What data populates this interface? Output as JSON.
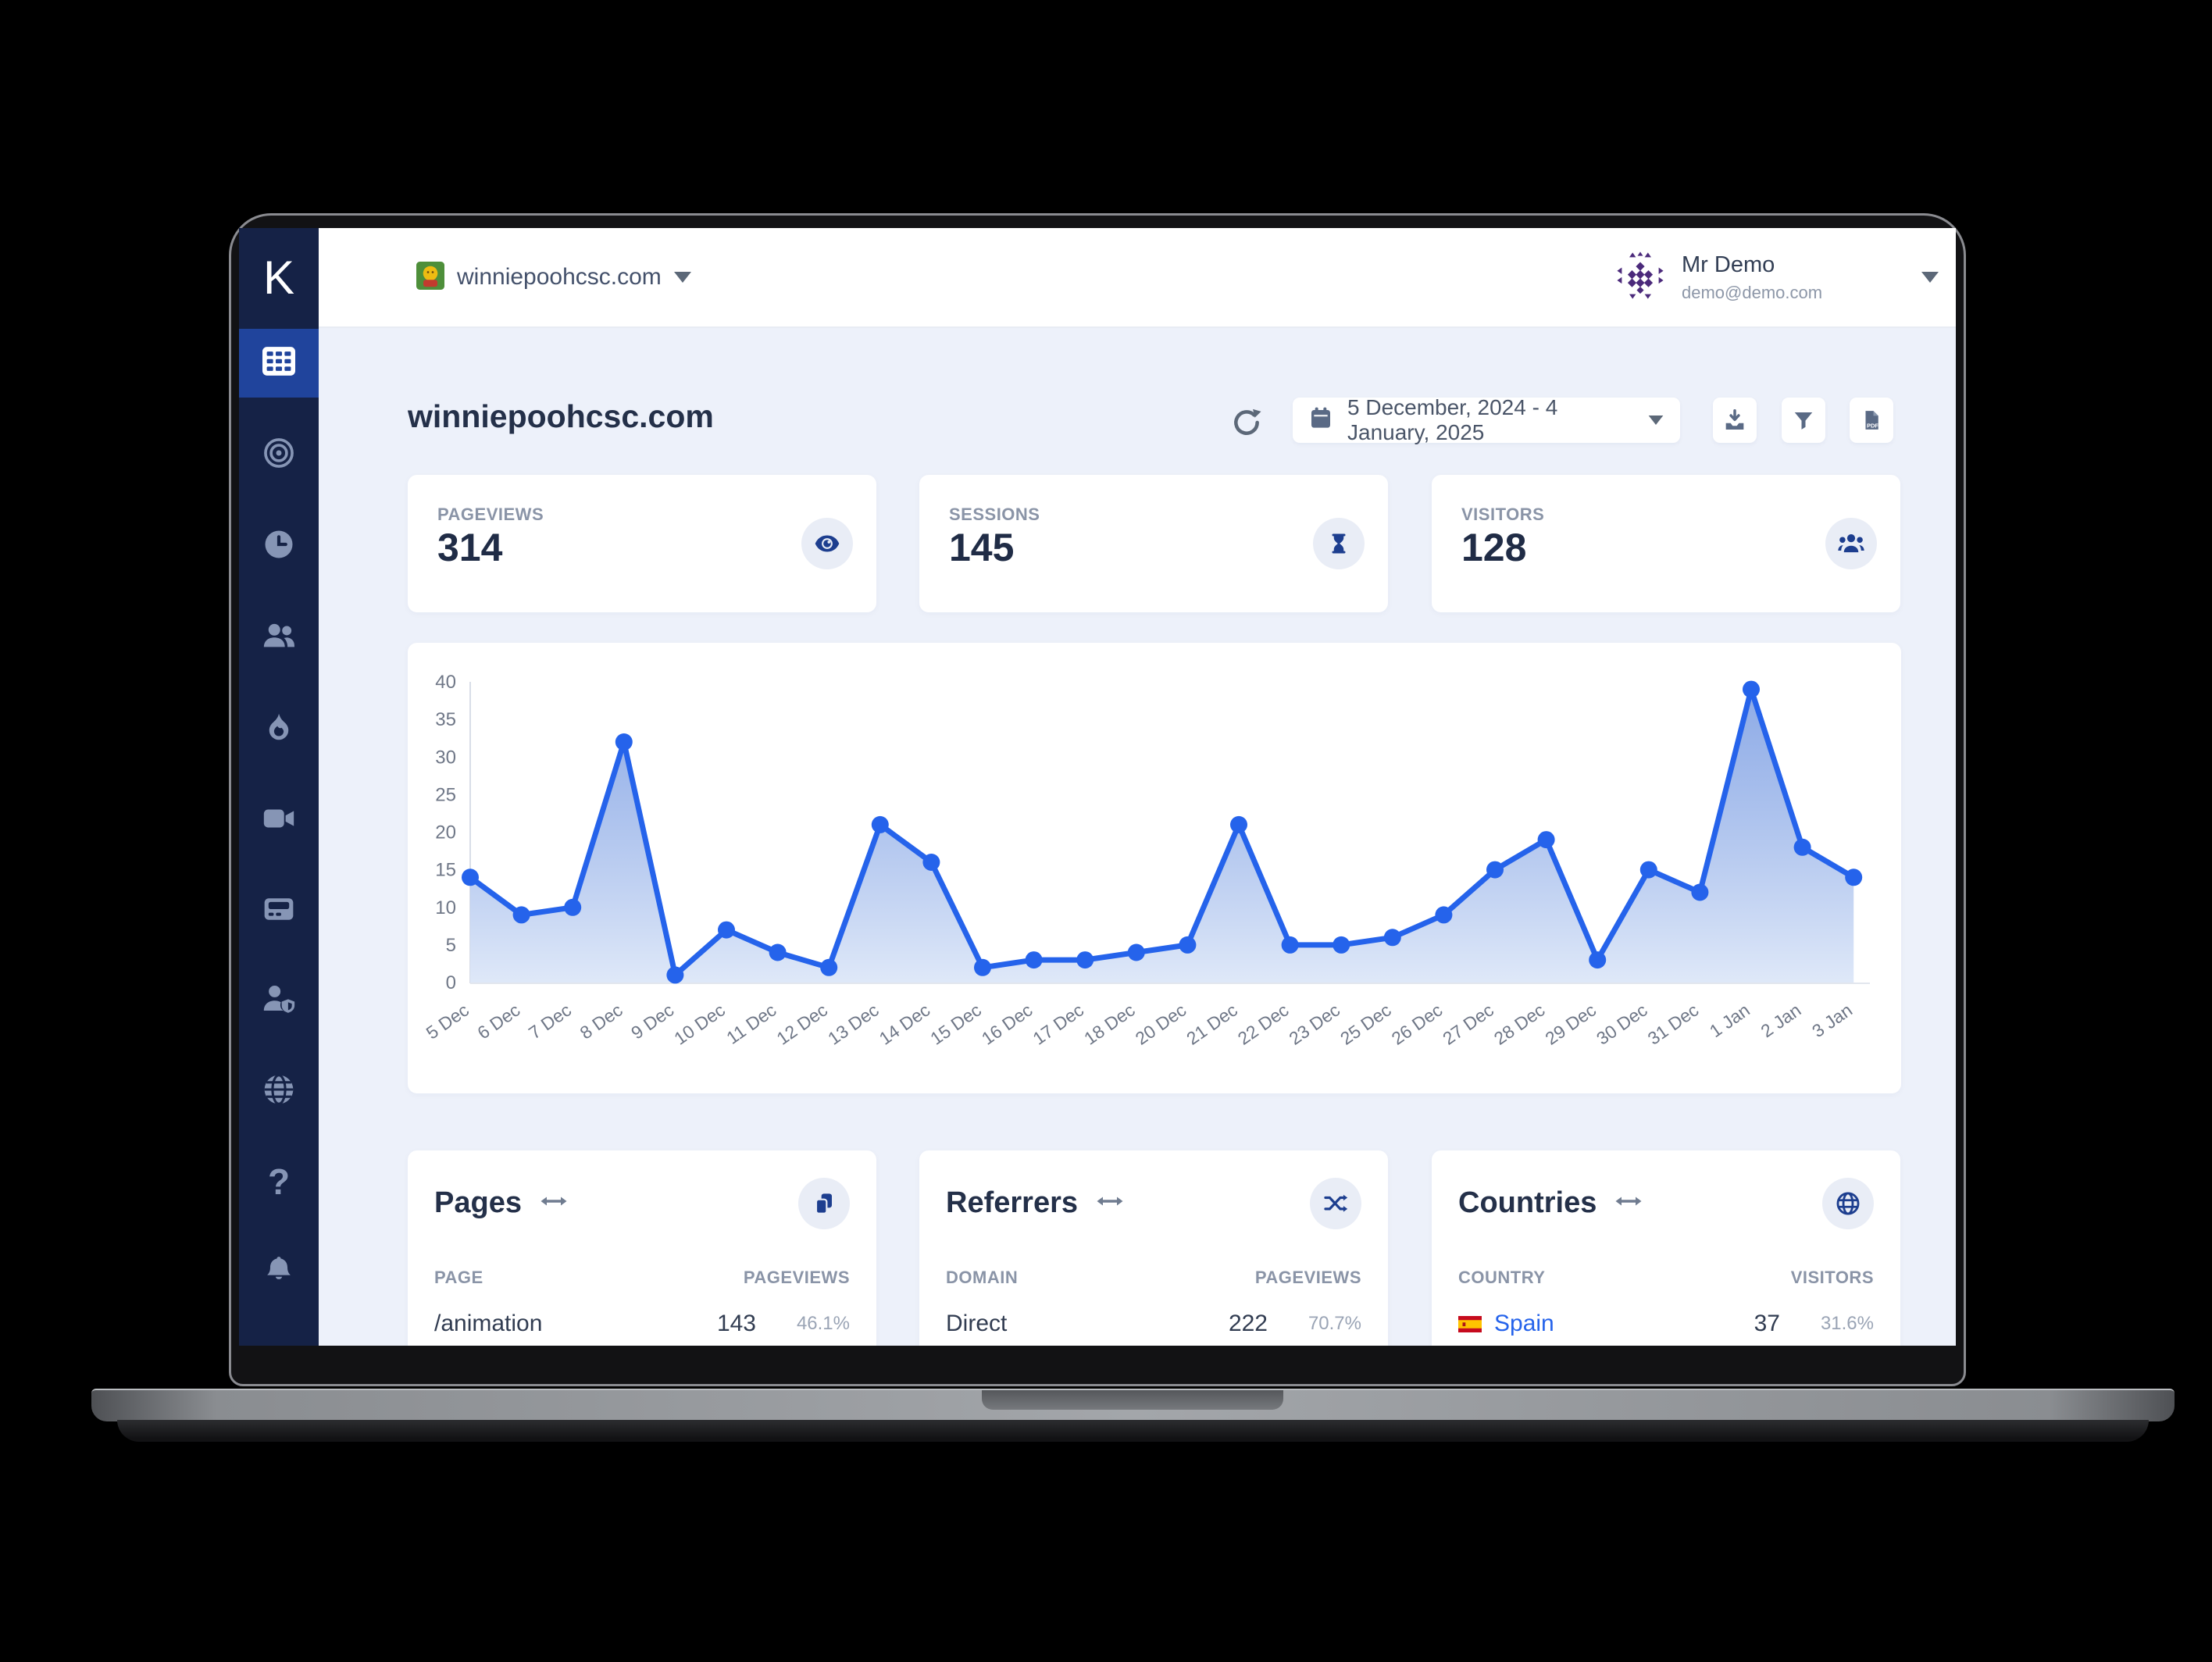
{
  "topbar": {
    "site_name": "winniepoohcsc.com",
    "user_name": "Mr Demo",
    "user_email": "demo@demo.com"
  },
  "sidebar": {
    "logo": "K",
    "items": [
      "dashboard",
      "goals",
      "realtime",
      "audience",
      "trends",
      "recordings",
      "billing",
      "account",
      "domains",
      "help",
      "notifications"
    ]
  },
  "header": {
    "title": "winniepoohcsc.com",
    "date_range": "5 December, 2024 - 4 January, 2025"
  },
  "stats": {
    "cards": [
      {
        "label": "PAGEVIEWS",
        "value": "314",
        "icon": "eye-icon"
      },
      {
        "label": "SESSIONS",
        "value": "145",
        "icon": "hourglass-icon"
      },
      {
        "label": "VISITORS",
        "value": "128",
        "icon": "users-group-icon"
      }
    ]
  },
  "chart_data": {
    "type": "area",
    "x": [
      "5 Dec",
      "6 Dec",
      "7 Dec",
      "8 Dec",
      "9 Dec",
      "10 Dec",
      "11 Dec",
      "12 Dec",
      "13 Dec",
      "14 Dec",
      "15 Dec",
      "16 Dec",
      "17 Dec",
      "18 Dec",
      "20 Dec",
      "21 Dec",
      "22 Dec",
      "23 Dec",
      "25 Dec",
      "26 Dec",
      "27 Dec",
      "28 Dec",
      "29 Dec",
      "30 Dec",
      "31 Dec",
      "1 Jan",
      "2 Jan",
      "3 Jan"
    ],
    "values": [
      14,
      9,
      10,
      32,
      1,
      7,
      4,
      2,
      21,
      16,
      2,
      3,
      3,
      4,
      5,
      21,
      5,
      5,
      6,
      9,
      15,
      19,
      3,
      15,
      12,
      39,
      18,
      14
    ],
    "ylim": [
      0,
      40
    ],
    "yticks": [
      0,
      5,
      10,
      15,
      20,
      25,
      30,
      35,
      40
    ],
    "line_color": "#2563eb",
    "fill_gradient": [
      "#6f94e0",
      "#dde7f8"
    ],
    "grid": false,
    "title": "",
    "xlabel": "",
    "ylabel": ""
  },
  "pages_card": {
    "title": "Pages",
    "col1": "PAGE",
    "col2": "PAGEVIEWS",
    "rows": [
      {
        "label": "/animation",
        "value": "143",
        "pct": "46.1%",
        "bar_pct": 46.1
      }
    ]
  },
  "referrers_card": {
    "title": "Referrers",
    "col1": "DOMAIN",
    "col2": "PAGEVIEWS",
    "rows": [
      {
        "label": "Direct",
        "value": "222",
        "pct": "70.7%"
      }
    ]
  },
  "countries_card": {
    "title": "Countries",
    "col1": "COUNTRY",
    "col2": "VISITORS",
    "rows": [
      {
        "label": "Spain",
        "value": "37",
        "pct": "31.6%",
        "bar_pct": 31.6,
        "flag": "Spain"
      }
    ]
  }
}
